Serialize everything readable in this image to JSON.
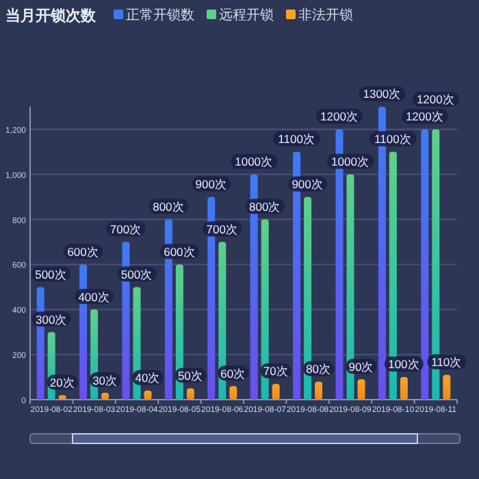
{
  "chart_data": {
    "type": "bar",
    "title": "当月开锁次数",
    "categories": [
      "2019-08-02",
      "2019-08-03",
      "2019-08-04",
      "2019-08-05",
      "2019-08-06",
      "2019-08-07",
      "2019-08-08",
      "2019-08-09",
      "2019-08-10",
      "2019-08-11"
    ],
    "series": [
      {
        "name": "正常开锁数",
        "color": "#3d7bf5",
        "values": [
          500,
          600,
          700,
          800,
          900,
          1000,
          1100,
          1200,
          1300,
          1200
        ],
        "value_labels": [
          "500次",
          "600次",
          "700次",
          "800次",
          "900次",
          "1000次",
          "1100次",
          "1200次",
          "1300次",
          "1200次"
        ]
      },
      {
        "name": "远程开锁",
        "color": "#5fd08a",
        "values": [
          300,
          400,
          500,
          600,
          700,
          800,
          900,
          1000,
          1100,
          1200
        ],
        "value_labels": [
          "300次",
          "400次",
          "500次",
          "600次",
          "700次",
          "800次",
          "900次",
          "1000次",
          "1100次",
          "1200次"
        ]
      },
      {
        "name": "非法开锁",
        "color": "#f5a623",
        "values": [
          20,
          30,
          40,
          50,
          60,
          70,
          80,
          90,
          100,
          110
        ],
        "value_labels": [
          "20次",
          "30次",
          "40次",
          "50次",
          "60次",
          "70次",
          "80次",
          "90次",
          "100次",
          "110次"
        ]
      }
    ],
    "ylim": [
      0,
      1300
    ],
    "yticks": [
      0,
      {
        "value": 200,
        "label": "200"
      },
      400,
      600,
      800,
      {
        "value": 1000,
        "label": "1,000"
      },
      {
        "value": 1200,
        "label": "1,200"
      }
    ],
    "grid": "y",
    "legend": "top"
  }
}
